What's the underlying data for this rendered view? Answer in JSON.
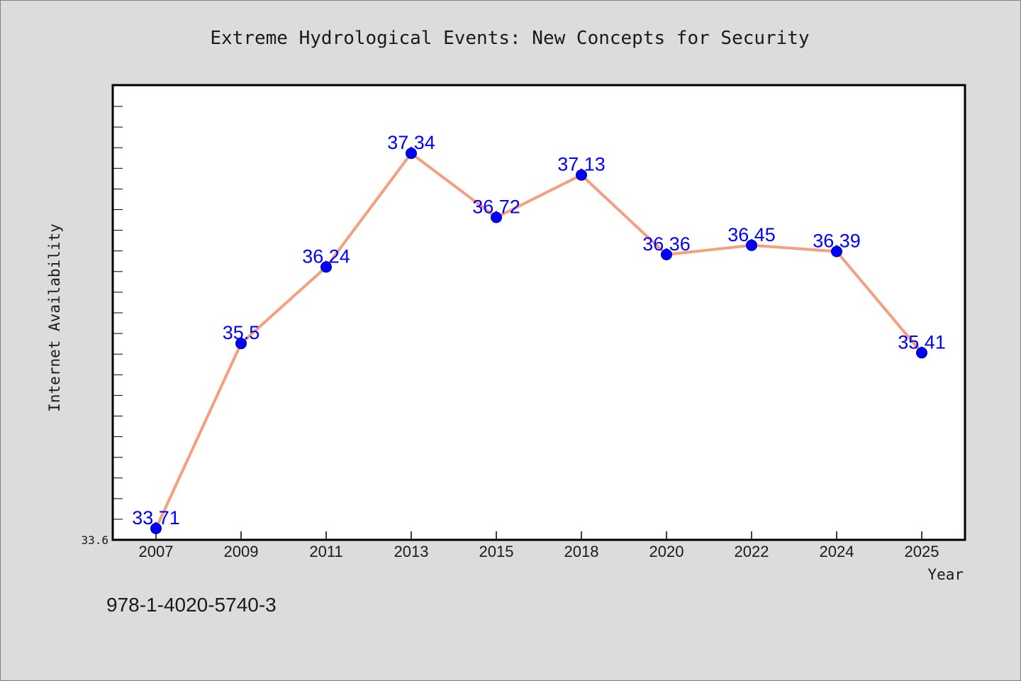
{
  "chart_data": {
    "type": "line",
    "title": "Extreme Hydrological Events: New Concepts for Security",
    "xlabel": "Year",
    "ylabel": "Internet Availability",
    "categories": [
      "2007",
      "2009",
      "2011",
      "2013",
      "2015",
      "2018",
      "2020",
      "2022",
      "2024",
      "2025"
    ],
    "values": [
      33.71,
      35.5,
      36.24,
      37.34,
      36.72,
      37.13,
      36.36,
      36.45,
      36.39,
      35.41
    ],
    "value_labels": [
      "33.71",
      "35.5",
      "36.24",
      "37.34",
      "36.72",
      "37.13",
      "36.36",
      "36.45",
      "36.39",
      "35.41"
    ],
    "ylim": [
      33.6,
      38.0
    ],
    "ytick_labels": [
      "33.6"
    ],
    "grid": false,
    "line_color": "#f4a07f",
    "marker_color": "#0000ff"
  },
  "footer_text": "978-1-4020-5740-3"
}
